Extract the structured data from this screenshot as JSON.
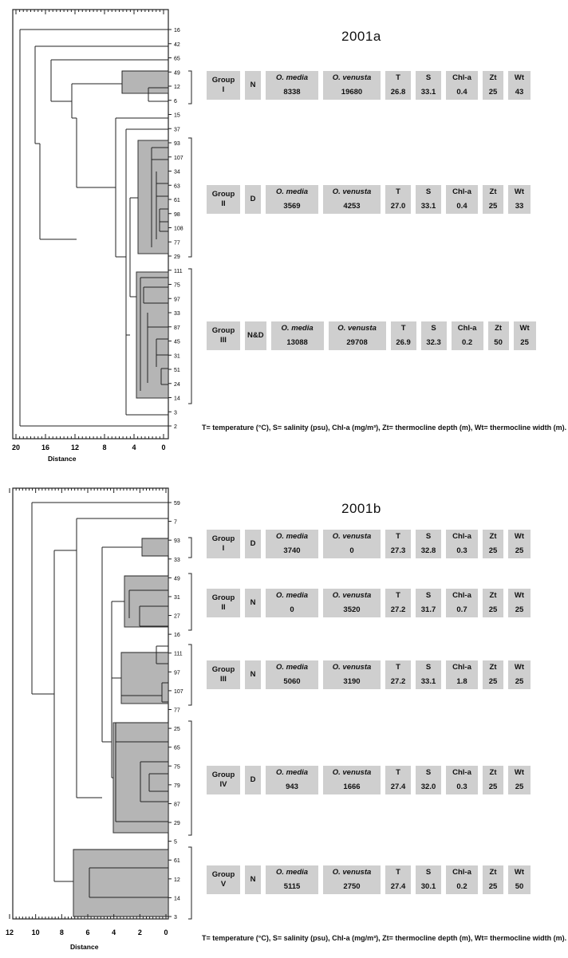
{
  "panels": [
    {
      "title": "2001a",
      "x_axis": {
        "label": "Distance",
        "tick_labels": [
          "20",
          "16",
          "12",
          "8",
          "4",
          "0"
        ]
      },
      "leaves": [
        "16",
        "42",
        "65",
        "49",
        "12",
        "6",
        "15",
        "37",
        "93",
        "107",
        "34",
        "63",
        "61",
        "98",
        "108",
        "77",
        "29",
        "111",
        "75",
        "97",
        "33",
        "87",
        "45",
        "31",
        "51",
        "24",
        "14",
        "3",
        "2"
      ],
      "groups": [
        {
          "group": "Group",
          "numeral": "I",
          "class": "N",
          "label_media": "O. media",
          "value_media": "8338",
          "label_venusta": "O. venusta",
          "value_venusta": "19680",
          "label_t": "T",
          "value_t": "26.8",
          "label_s": "S",
          "value_s": "33.1",
          "label_chl": "Chl-a",
          "value_chl": "0.4",
          "label_zt": "Zt",
          "value_zt": "25",
          "label_wt": "Wt",
          "value_wt": "43"
        },
        {
          "group": "Group",
          "numeral": "II",
          "class": "D",
          "label_media": "O. media",
          "value_media": "3569",
          "label_venusta": "O. venusta",
          "value_venusta": "4253",
          "label_t": "T",
          "value_t": "27.0",
          "label_s": "S",
          "value_s": "33.1",
          "label_chl": "Chl-a",
          "value_chl": "0.4",
          "label_zt": "Zt",
          "value_zt": "25",
          "label_wt": "Wt",
          "value_wt": "33"
        },
        {
          "group": "Group",
          "numeral": "III",
          "class": "N&D",
          "label_media": "O. media",
          "value_media": "13088",
          "label_venusta": "O. venusta",
          "value_venusta": "29708",
          "label_t": "T",
          "value_t": "26.9",
          "label_s": "S",
          "value_s": "32.3",
          "label_chl": "Chl-a",
          "value_chl": "0.2",
          "label_zt": "Zt",
          "value_zt": "50",
          "label_wt": "Wt",
          "value_wt": "25"
        }
      ],
      "footnote": "T= temperature (°C), S= salinity (psu), Chl-a (mg/m³), Zt= thermocline depth (m), Wt= thermocline width (m)."
    },
    {
      "title": "2001b",
      "x_axis": {
        "label": "Distance",
        "tick_labels": [
          "12",
          "10",
          "8",
          "6",
          "4",
          "2",
          "0"
        ]
      },
      "leaves": [
        "59",
        "7",
        "93",
        "33",
        "49",
        "31",
        "27",
        "16",
        "111",
        "97",
        "107",
        "77",
        "25",
        "65",
        "75",
        "79",
        "87",
        "29",
        "5",
        "61",
        "12",
        "14",
        "3"
      ],
      "groups": [
        {
          "group": "Group",
          "numeral": "I",
          "class": "D",
          "label_media": "O. media",
          "value_media": "3740",
          "label_venusta": "O. venusta",
          "value_venusta": "0",
          "label_t": "T",
          "value_t": "27.3",
          "label_s": "S",
          "value_s": "32.8",
          "label_chl": "Chl-a",
          "value_chl": "0.3",
          "label_zt": "Zt",
          "value_zt": "25",
          "label_wt": "Wt",
          "value_wt": "25"
        },
        {
          "group": "Group",
          "numeral": "II",
          "class": "N",
          "label_media": "O. media",
          "value_media": "0",
          "label_venusta": "O. venusta",
          "value_venusta": "3520",
          "label_t": "T",
          "value_t": "27.2",
          "label_s": "S",
          "value_s": "31.7",
          "label_chl": "Chl-a",
          "value_chl": "0.7",
          "label_zt": "Zt",
          "value_zt": "25",
          "label_wt": "Wt",
          "value_wt": "25"
        },
        {
          "group": "Group",
          "numeral": "III",
          "class": "N",
          "label_media": "O. media",
          "value_media": "5060",
          "label_venusta": "O. venusta",
          "value_venusta": "3190",
          "label_t": "T",
          "value_t": "27.2",
          "label_s": "S",
          "value_s": "33.1",
          "label_chl": "Chl-a",
          "value_chl": "1.8",
          "label_zt": "Zt",
          "value_zt": "25",
          "label_wt": "Wt",
          "value_wt": "25"
        },
        {
          "group": "Group",
          "numeral": "IV",
          "class": "D",
          "label_media": "O. media",
          "value_media": "943",
          "label_venusta": "O. venusta",
          "value_venusta": "1666",
          "label_t": "T",
          "value_t": "27.4",
          "label_s": "S",
          "value_s": "32.0",
          "label_chl": "Chl-a",
          "value_chl": "0.3",
          "label_zt": "Zt",
          "value_zt": "25",
          "label_wt": "Wt",
          "value_wt": "25"
        },
        {
          "group": "Group",
          "numeral": "V",
          "class": "N",
          "label_media": "O. media",
          "value_media": "5115",
          "label_venusta": "O. venusta",
          "value_venusta": "2750",
          "label_t": "T",
          "value_t": "27.4",
          "label_s": "S",
          "value_s": "30.1",
          "label_chl": "Chl-a",
          "value_chl": "0.2",
          "label_zt": "Zt",
          "value_zt": "25",
          "label_wt": "Wt",
          "value_wt": "50"
        }
      ],
      "footnote": "T= temperature (°C), S= salinity (psu), Chl-a (mg/m³), Zt= thermocline depth (m), Wt= thermocline width (m)."
    }
  ]
}
